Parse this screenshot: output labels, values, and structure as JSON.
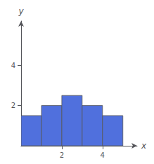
{
  "chart_data": {
    "type": "histogram",
    "bins": [
      0,
      1,
      2,
      3,
      4,
      5
    ],
    "values": [
      1.5,
      2.0,
      2.5,
      2.0,
      1.5
    ],
    "xlabel": "x",
    "ylabel": "y",
    "xlim": [
      0,
      5.7
    ],
    "xticks": [
      2,
      4
    ],
    "ylim": [
      0,
      6.2
    ],
    "yticks": [
      2,
      4
    ],
    "grid": false
  }
}
